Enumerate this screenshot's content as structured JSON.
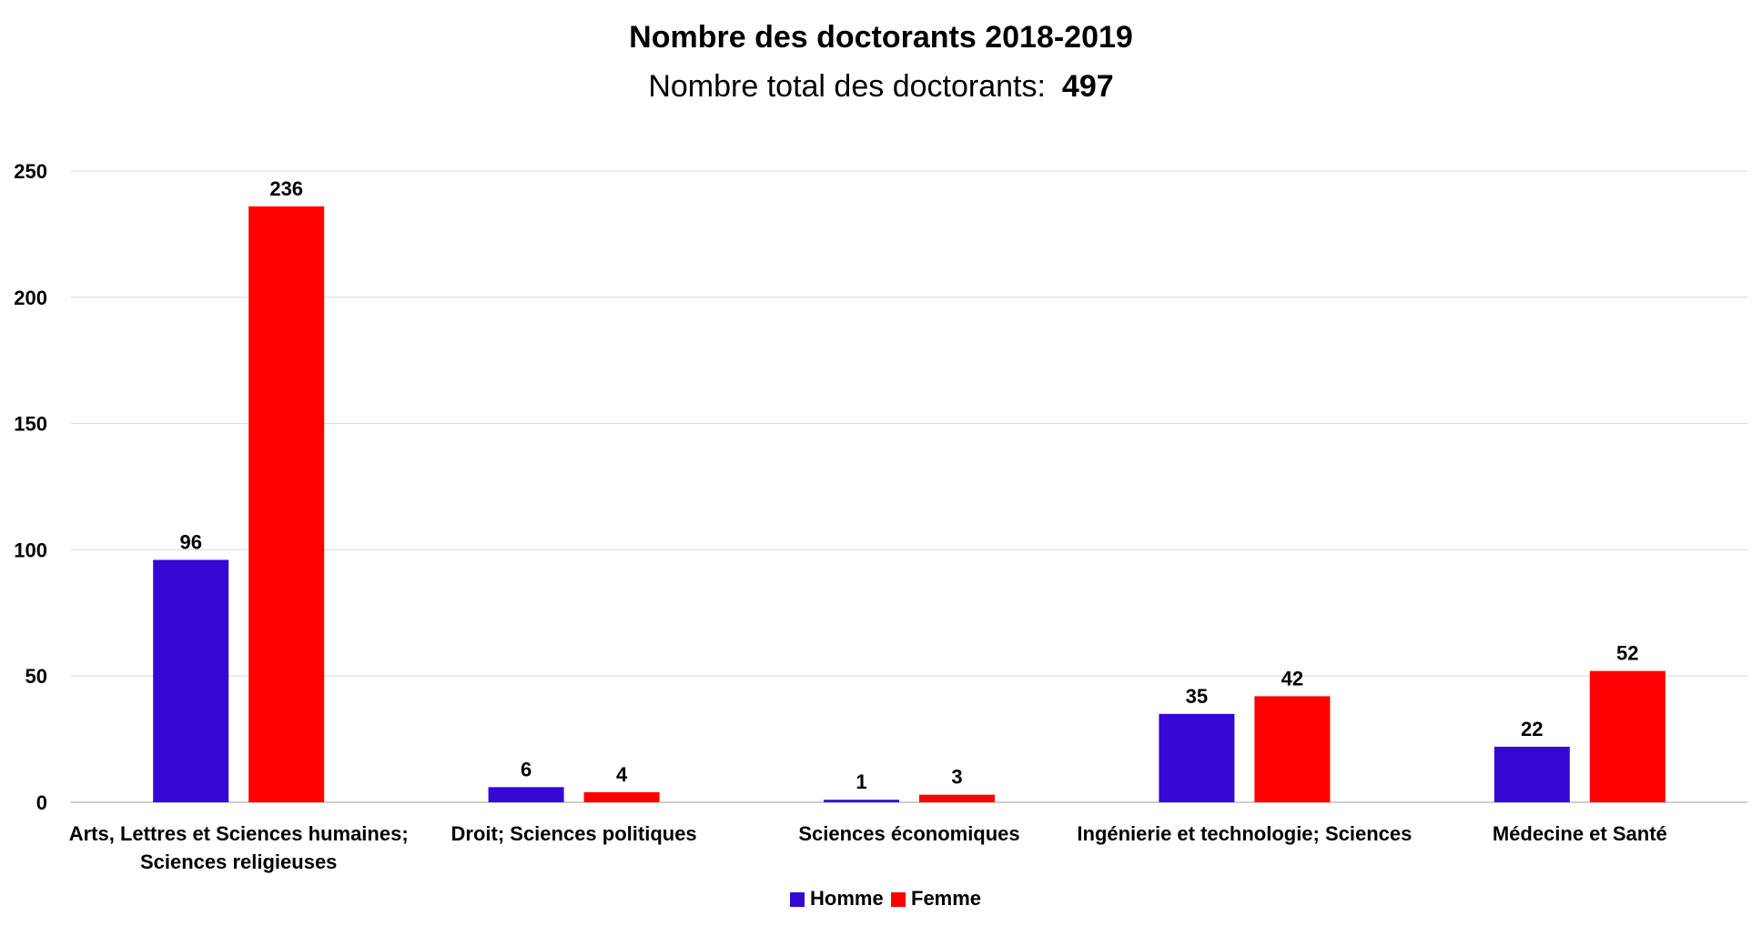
{
  "chart_data": {
    "type": "bar",
    "title": "Nombre des doctorants 2018-2019",
    "subtitle": {
      "label": "Nombre total des doctorants:",
      "value": "497"
    },
    "categories": [
      [
        "Arts, Lettres et Sciences humaines;",
        "Sciences religieuses"
      ],
      [
        "Droit; Sciences politiques"
      ],
      [
        "Sciences économiques"
      ],
      [
        "Ingénierie et technologie; Sciences"
      ],
      [
        "Médecine et Santé"
      ]
    ],
    "series": [
      {
        "name": "Homme",
        "color": "#3508D4",
        "values": [
          96,
          6,
          1,
          35,
          22
        ]
      },
      {
        "name": "Femme",
        "color": "#FF0000",
        "values": [
          236,
          4,
          3,
          42,
          52
        ]
      }
    ],
    "yticks": [
      0,
      50,
      100,
      150,
      200,
      250
    ],
    "ylim": [
      0,
      250
    ],
    "xlabel": "",
    "ylabel": "",
    "grid": true,
    "legend_position": "bottom"
  }
}
